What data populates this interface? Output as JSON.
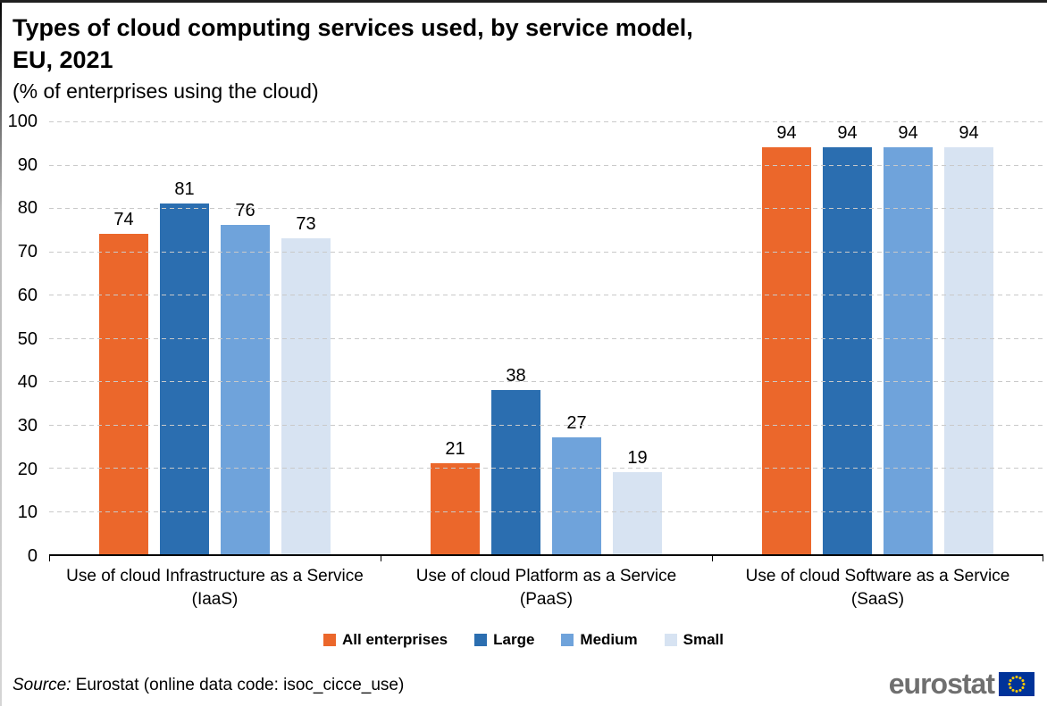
{
  "title": {
    "line1": "Types of cloud computing services used, by service model,",
    "line2": "EU, 2021",
    "subtitle": "(% of enterprises using the cloud)"
  },
  "chart_data": {
    "type": "bar",
    "categories": [
      {
        "line1": "Use of cloud Infrastructure as a Service",
        "line2": "(IaaS)"
      },
      {
        "line1": "Use of cloud Platform as a Service",
        "line2": "(PaaS)"
      },
      {
        "line1": "Use of cloud Software as a Service",
        "line2": "(SaaS)"
      }
    ],
    "series": [
      {
        "name": "All enterprises",
        "color": "#EB672B",
        "values": [
          74,
          21,
          94
        ]
      },
      {
        "name": "Large",
        "color": "#2B6EB0",
        "values": [
          81,
          38,
          94
        ]
      },
      {
        "name": "Medium",
        "color": "#6FA3DB",
        "values": [
          76,
          27,
          94
        ]
      },
      {
        "name": "Small",
        "color": "#D7E3F2",
        "values": [
          73,
          19,
          94
        ]
      }
    ],
    "ylim": [
      0,
      100
    ],
    "ytick_step": 10,
    "ytick_labels": [
      "0",
      "10",
      "20",
      "30",
      "40",
      "50",
      "60",
      "70",
      "80",
      "90",
      "100"
    ],
    "grid": "horizontal-dashed",
    "gridline_color": "#c9c9c9",
    "value_labels": true,
    "legend_position": "bottom",
    "title": "Types of cloud computing services used, by service model, EU, 2021",
    "subtitle": "(% of enterprises using the cloud)",
    "xlabel": "",
    "ylabel": ""
  },
  "footer": {
    "source_prefix": "Source:",
    "source_rest": " Eurostat (online data code: isoc_cicce_use)",
    "logo_text": "eurostat",
    "flag_blue": "#003399",
    "flag_star_yellow": "#FFCC00"
  }
}
